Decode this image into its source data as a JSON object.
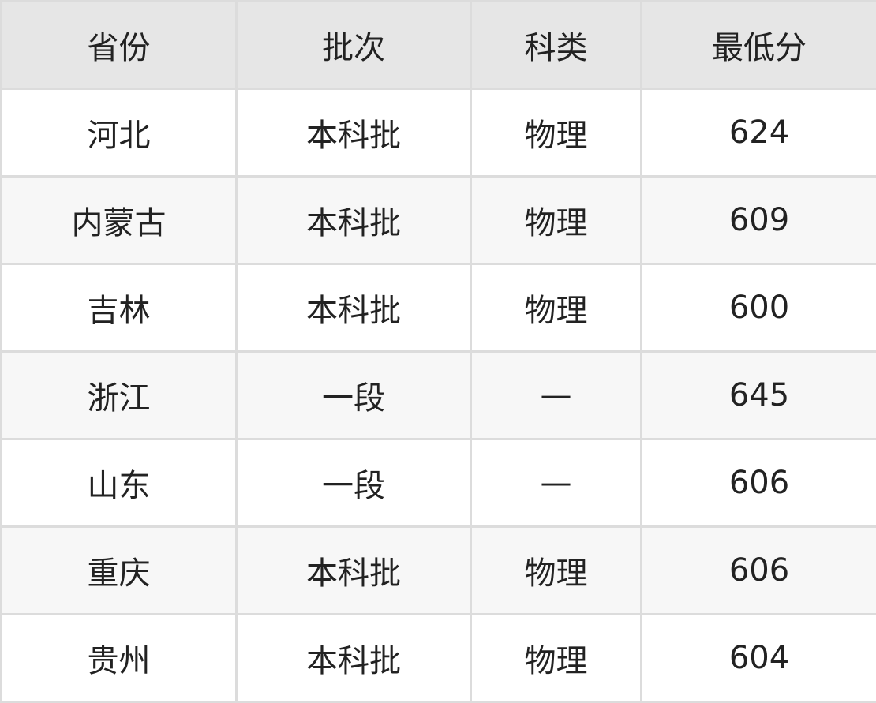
{
  "table": {
    "headers": [
      "省份",
      "批次",
      "科类",
      "最低分"
    ],
    "rows": [
      [
        "河北",
        "本科批",
        "物理",
        "624"
      ],
      [
        "内蒙古",
        "本科批",
        "物理",
        "609"
      ],
      [
        "吉林",
        "本科批",
        "物理",
        "600"
      ],
      [
        "浙江",
        "一段",
        "—",
        "645"
      ],
      [
        "山东",
        "一段",
        "—",
        "606"
      ],
      [
        "重庆",
        "本科批",
        "物理",
        "606"
      ],
      [
        "贵州",
        "本科批",
        "物理",
        "604"
      ]
    ]
  }
}
